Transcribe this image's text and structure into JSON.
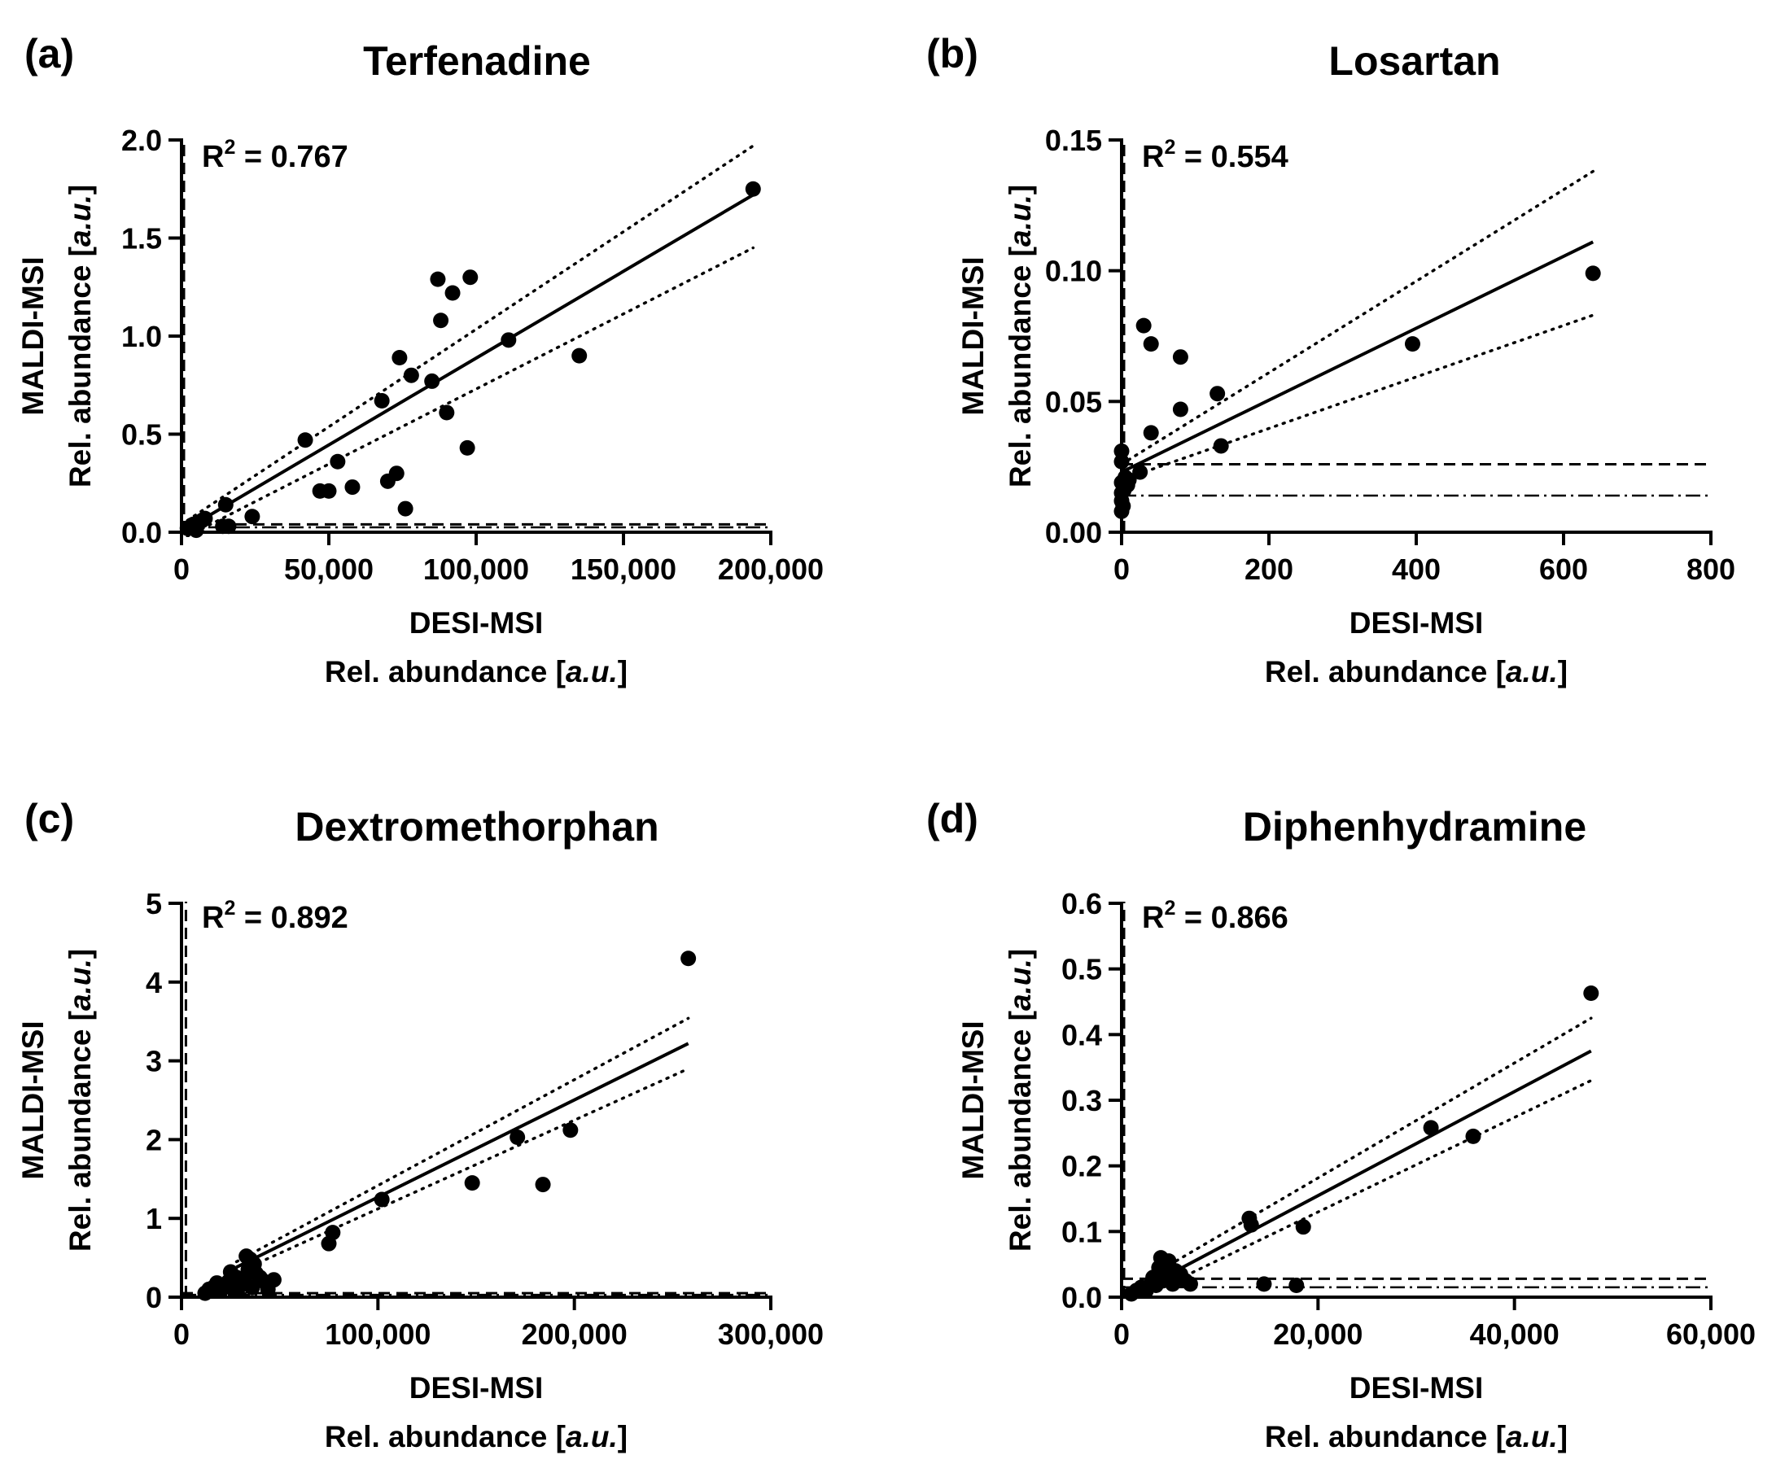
{
  "figure": {
    "r2_prefix": "R",
    "r2_exponent": "2",
    "x_label_line1": "DESI-MSI",
    "y_label_line1": "MALDI-MSI",
    "abundance_prefix": "Rel. abundance [",
    "abundance_unit": "a.u.",
    "abundance_suffix": "]"
  },
  "chart_data": [
    {
      "panel": "(a)",
      "type": "scatter",
      "title": "Terfenadine",
      "r2_value": " = 0.767",
      "xlabel": "DESI-MSI Rel. abundance [a.u.]",
      "ylabel": "MALDI-MSI Rel. abundance [a.u.]",
      "xlim": [
        0,
        200000
      ],
      "ylim": [
        0,
        2.0
      ],
      "xticks": [
        0,
        50000,
        100000,
        150000,
        200000
      ],
      "xtick_labels": [
        "0",
        "50,000",
        "100,000",
        "150,000",
        "200,000"
      ],
      "yticks": [
        0,
        0.5,
        1.0,
        1.5,
        2.0
      ],
      "ytick_labels": [
        "0.0",
        "0.5",
        "1.0",
        "1.5",
        "2.0"
      ],
      "points": [
        [
          2000,
          0.02
        ],
        [
          4000,
          0.04
        ],
        [
          5000,
          0.01
        ],
        [
          7000,
          0.06
        ],
        [
          8000,
          0.07
        ],
        [
          14000,
          0.03
        ],
        [
          15000,
          0.14
        ],
        [
          16000,
          0.03
        ],
        [
          24000,
          0.08
        ],
        [
          42000,
          0.47
        ],
        [
          47000,
          0.21
        ],
        [
          50000,
          0.21
        ],
        [
          53000,
          0.36
        ],
        [
          58000,
          0.23
        ],
        [
          68000,
          0.67
        ],
        [
          70000,
          0.26
        ],
        [
          73000,
          0.3
        ],
        [
          74000,
          0.89
        ],
        [
          76000,
          0.12
        ],
        [
          78000,
          0.8
        ],
        [
          85000,
          0.77
        ],
        [
          87000,
          1.29
        ],
        [
          88000,
          1.08
        ],
        [
          90000,
          0.61
        ],
        [
          92000,
          1.22
        ],
        [
          97000,
          0.43
        ],
        [
          98000,
          1.3
        ],
        [
          111000,
          0.98
        ],
        [
          135000,
          0.9
        ],
        [
          194000,
          1.75
        ]
      ],
      "fit_line": [
        [
          2000,
          0.02
        ],
        [
          194000,
          1.72
        ]
      ],
      "ci_upper": [
        [
          2000,
          0.06
        ],
        [
          194000,
          1.97
        ]
      ],
      "ci_lower": [
        [
          2000,
          -0.02
        ],
        [
          194000,
          1.45
        ]
      ],
      "lod_y": 0.04,
      "lod_alt_y": 0.025,
      "lod_x": 0
    },
    {
      "panel": "(b)",
      "type": "scatter",
      "title": "Losartan",
      "r2_value": " = 0.554",
      "xlabel": "DESI-MSI Rel. abundance [a.u.]",
      "ylabel": "MALDI-MSI Rel. abundance [a.u.]",
      "xlim": [
        0,
        800
      ],
      "ylim": [
        0,
        0.15
      ],
      "xticks": [
        0,
        200,
        400,
        600,
        800
      ],
      "xtick_labels": [
        "0",
        "200",
        "400",
        "600",
        "800"
      ],
      "yticks": [
        0,
        0.05,
        0.1,
        0.15
      ],
      "ytick_labels": [
        "0.00",
        "0.05",
        "0.10",
        "0.15"
      ],
      "points": [
        [
          0,
          0.008
        ],
        [
          0,
          0.012
        ],
        [
          0,
          0.015
        ],
        [
          0,
          0.019
        ],
        [
          0,
          0.027
        ],
        [
          0,
          0.031
        ],
        [
          2,
          0.01
        ],
        [
          3,
          0.016
        ],
        [
          5,
          0.021
        ],
        [
          8,
          0.018
        ],
        [
          10,
          0.02
        ],
        [
          25,
          0.023
        ],
        [
          30,
          0.079
        ],
        [
          40,
          0.072
        ],
        [
          40,
          0.038
        ],
        [
          80,
          0.067
        ],
        [
          80,
          0.047
        ],
        [
          130,
          0.053
        ],
        [
          135,
          0.033
        ],
        [
          395,
          0.072
        ],
        [
          640,
          0.099
        ]
      ],
      "fit_line": [
        [
          0,
          0.023
        ],
        [
          640,
          0.111
        ]
      ],
      "ci_upper": [
        [
          0,
          0.026
        ],
        [
          640,
          0.138
        ]
      ],
      "ci_lower": [
        [
          0,
          0.02
        ],
        [
          640,
          0.083
        ]
      ],
      "lod_y": 0.026,
      "lod_alt_y": 0.014,
      "lod_x": 0
    },
    {
      "panel": "(c)",
      "type": "scatter",
      "title": "Dextromethorphan",
      "r2_value": " = 0.892",
      "xlabel": "DESI-MSI Rel. abundance [a.u.]",
      "ylabel": "MALDI-MSI Rel. abundance [a.u.]",
      "xlim": [
        0,
        300000
      ],
      "ylim": [
        0,
        5
      ],
      "xticks": [
        0,
        100000,
        200000,
        300000
      ],
      "xtick_labels": [
        "0",
        "100,000",
        "200,000",
        "300,000"
      ],
      "yticks": [
        0,
        1,
        2,
        3,
        4,
        5
      ],
      "ytick_labels": [
        "0",
        "1",
        "2",
        "3",
        "4",
        "5"
      ],
      "points": [
        [
          12000,
          0.05
        ],
        [
          14000,
          0.1
        ],
        [
          16000,
          0.12
        ],
        [
          18000,
          0.18
        ],
        [
          20000,
          0.08
        ],
        [
          22000,
          0.15
        ],
        [
          24000,
          0.2
        ],
        [
          25000,
          0.32
        ],
        [
          27000,
          0.1
        ],
        [
          28000,
          0.25
        ],
        [
          30000,
          0.15
        ],
        [
          32000,
          0.2
        ],
        [
          33000,
          0.52
        ],
        [
          34000,
          0.35
        ],
        [
          35000,
          0.48
        ],
        [
          36000,
          0.12
        ],
        [
          37000,
          0.42
        ],
        [
          38000,
          0.3
        ],
        [
          40000,
          0.25
        ],
        [
          42000,
          0.2
        ],
        [
          44000,
          0.1
        ],
        [
          47000,
          0.22
        ],
        [
          75000,
          0.68
        ],
        [
          77000,
          0.82
        ],
        [
          102000,
          1.24
        ],
        [
          148000,
          1.45
        ],
        [
          171000,
          2.03
        ],
        [
          184000,
          1.43
        ],
        [
          198000,
          2.12
        ],
        [
          258000,
          4.3
        ]
      ],
      "fit_line": [
        [
          28000,
          0.38
        ],
        [
          258000,
          3.22
        ]
      ],
      "ci_upper": [
        [
          28000,
          0.45
        ],
        [
          258000,
          3.54
        ]
      ],
      "ci_lower": [
        [
          28000,
          0.31
        ],
        [
          258000,
          2.9
        ]
      ],
      "lod_y": 0.05,
      "lod_alt_y": 0.03,
      "lod_x": 1000
    },
    {
      "panel": "(d)",
      "type": "scatter",
      "title": "Diphenhydramine",
      "r2_value": " = 0.866",
      "xlabel": "DESI-MSI Rel. abundance [a.u.]",
      "ylabel": "MALDI-MSI Rel. abundance [a.u.]",
      "xlim": [
        0,
        60000
      ],
      "ylim": [
        0,
        0.6
      ],
      "xticks": [
        0,
        20000,
        40000,
        60000
      ],
      "xtick_labels": [
        "0",
        "20,000",
        "40,000",
        "60,000"
      ],
      "yticks": [
        0,
        0.1,
        0.2,
        0.3,
        0.4,
        0.5,
        0.6
      ],
      "ytick_labels": [
        "0.0",
        "0.1",
        "0.2",
        "0.3",
        "0.4",
        "0.5",
        "0.6"
      ],
      "points": [
        [
          1000,
          0.005
        ],
        [
          1500,
          0.01
        ],
        [
          2000,
          0.015
        ],
        [
          2500,
          0.01
        ],
        [
          3000,
          0.02
        ],
        [
          3200,
          0.03
        ],
        [
          3500,
          0.018
        ],
        [
          3800,
          0.045
        ],
        [
          4000,
          0.06
        ],
        [
          4200,
          0.025
        ],
        [
          4500,
          0.04
        ],
        [
          4800,
          0.055
        ],
        [
          5000,
          0.03
        ],
        [
          5200,
          0.02
        ],
        [
          5500,
          0.04
        ],
        [
          6000,
          0.035
        ],
        [
          6500,
          0.025
        ],
        [
          7000,
          0.02
        ],
        [
          13000,
          0.12
        ],
        [
          13200,
          0.11
        ],
        [
          14500,
          0.02
        ],
        [
          17800,
          0.018
        ],
        [
          18500,
          0.107
        ],
        [
          31500,
          0.258
        ],
        [
          35800,
          0.245
        ],
        [
          47800,
          0.463
        ]
      ],
      "fit_line": [
        [
          2000,
          0.012
        ],
        [
          47800,
          0.375
        ]
      ],
      "ci_upper": [
        [
          2000,
          0.024
        ],
        [
          47800,
          0.425
        ]
      ],
      "ci_lower": [
        [
          2000,
          0.0
        ],
        [
          47800,
          0.33
        ]
      ],
      "lod_y": 0.028,
      "lod_alt_y": 0.015,
      "lod_x": 0
    }
  ]
}
